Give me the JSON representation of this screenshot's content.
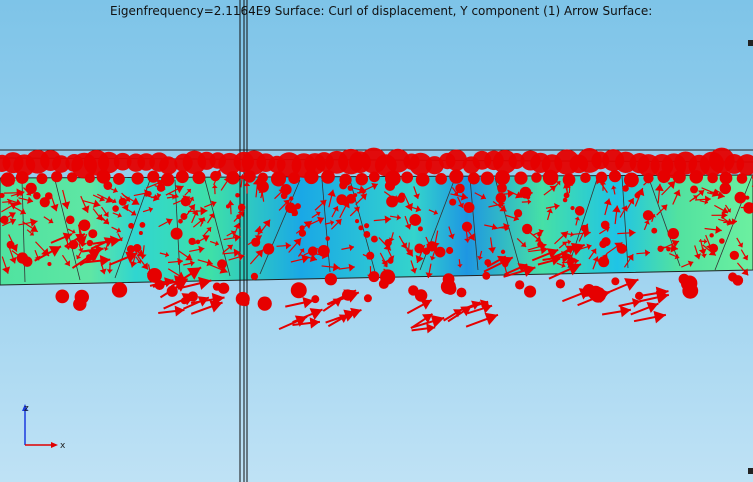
{
  "plot": {
    "title": "Eigenfrequency=2.1164E9   Surface: Curl of displacement, Y component (1)  Arrow Surface:"
  },
  "axes": {
    "z_label": "z",
    "x_label": "x"
  },
  "colors": {
    "arrow": "#e60000",
    "surface_green": "#4fe3a0",
    "surface_cyan": "#20c8e8",
    "surface_blue": "#1898e0",
    "background_top": "#7ec4e8",
    "background_bottom": "#bfe2f5"
  }
}
